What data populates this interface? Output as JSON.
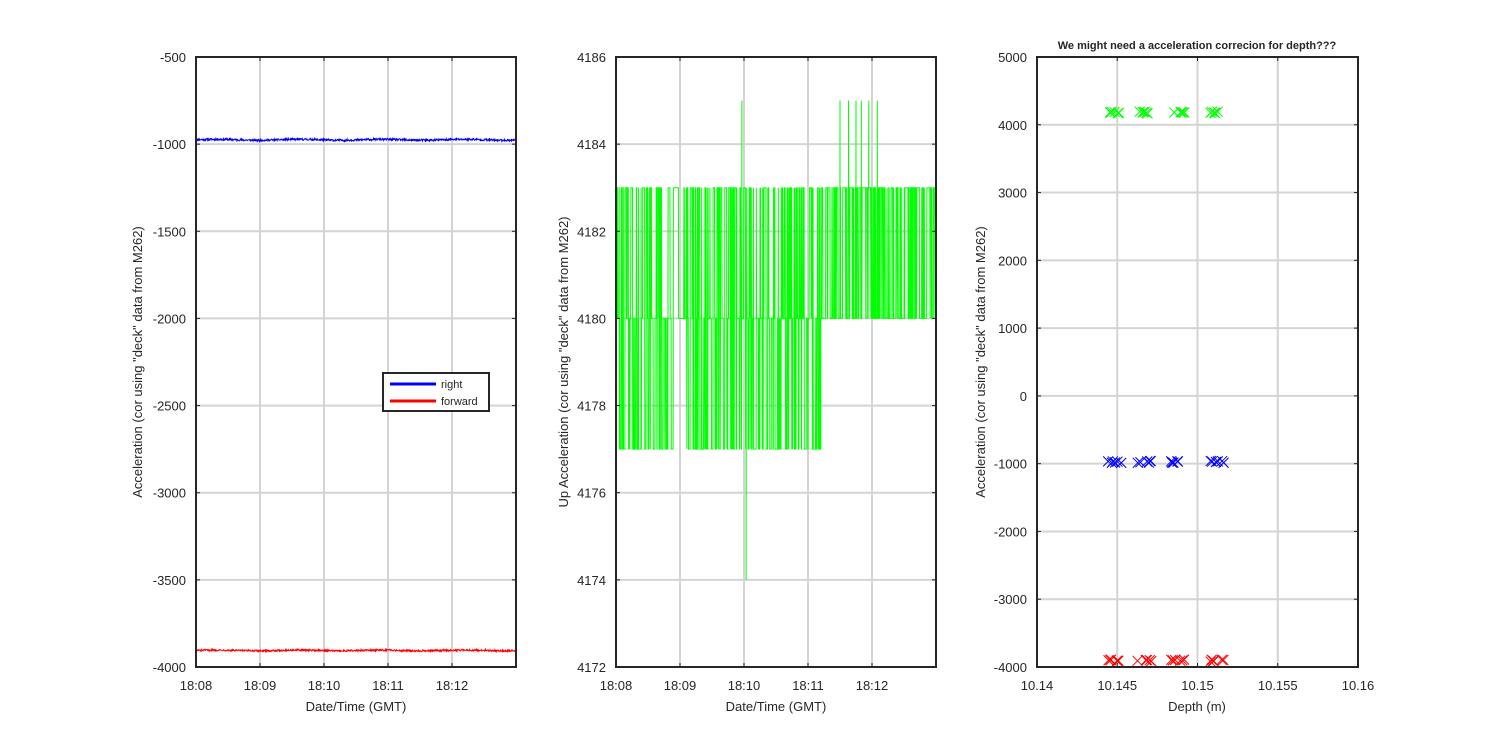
{
  "chart_data": [
    {
      "type": "line",
      "title": "",
      "xlabel": "Date/Time (GMT)",
      "ylabel": "Acceleration (cor using \"deck\" data from M262)",
      "xlim": [
        "18:08",
        "18:13"
      ],
      "ylim": [
        -4000,
        -500
      ],
      "x_ticks": [
        "18:08",
        "18:09",
        "18:10",
        "18:11",
        "18:12"
      ],
      "y_ticks": [
        "-500",
        "-1000",
        "-1500",
        "-2000",
        "-2500",
        "-3000",
        "-3500",
        "-4000"
      ],
      "grid": true,
      "legend": "center-right",
      "series": [
        {
          "name": "right",
          "color": "#0000ff",
          "baseline": -975,
          "noise": 6
        },
        {
          "name": "forward",
          "color": "#ff0000",
          "baseline": -3905,
          "noise": 5
        }
      ]
    },
    {
      "type": "line",
      "title": "",
      "xlabel": "Date/Time (GMT)",
      "ylabel": "Up Acceleration (cor using \"deck\" data from M262)",
      "xlim": [
        "18:08",
        "18:13"
      ],
      "ylim": [
        4172,
        4186
      ],
      "x_ticks": [
        "18:08",
        "18:09",
        "18:10",
        "18:11",
        "18:12"
      ],
      "y_ticks": [
        "4186",
        "4184",
        "4182",
        "4180",
        "4178",
        "4176",
        "4174",
        "4172"
      ],
      "grid": true,
      "series": [
        {
          "name": "",
          "color": "#00ff00",
          "segments": [
            {
              "start": "18:08",
              "end": "18:11:12",
              "levels": [
                4177,
                4180,
                4183
              ]
            },
            {
              "start": "18:11:12",
              "end": "18:13",
              "levels": [
                4180,
                4183
              ]
            }
          ],
          "spikes": [
            {
              "time": "18:09:58",
              "value": 4185
            },
            {
              "time": "18:10:02",
              "value": 4174
            },
            {
              "time": "18:11:30",
              "value": 4185
            },
            {
              "time": "18:11:38",
              "value": 4185
            },
            {
              "time": "18:11:45",
              "value": 4185
            },
            {
              "time": "18:11:50",
              "value": 4185
            },
            {
              "time": "18:11:57",
              "value": 4185
            },
            {
              "time": "18:12:05",
              "value": 4185
            }
          ]
        }
      ]
    },
    {
      "type": "scatter",
      "title": "We might need a acceleration correcion for depth???",
      "xlabel": "Depth (m)",
      "ylabel": "Acceleration (cor using \"deck\" data from M262)",
      "xlim": [
        10.14,
        10.16
      ],
      "ylim": [
        -4000,
        5000
      ],
      "x_ticks": [
        "10.14",
        "10.145",
        "10.15",
        "10.155",
        "10.16"
      ],
      "y_ticks": [
        "5000",
        "4000",
        "3000",
        "2000",
        "1000",
        "0",
        "-1000",
        "-2000",
        "-3000",
        "-4000"
      ],
      "grid": true,
      "marker": "x",
      "depth_clusters": [
        10.1448,
        10.1467,
        10.1488,
        10.1512
      ],
      "series": [
        {
          "name": "",
          "color": "#00ff00",
          "value": 4180
        },
        {
          "name": "",
          "color": "#0000ff",
          "value": -975
        },
        {
          "name": "",
          "color": "#ff0000",
          "value": -3905
        }
      ]
    }
  ]
}
